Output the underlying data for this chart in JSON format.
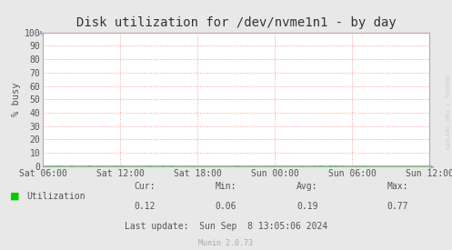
{
  "title": "Disk utilization for /dev/nvme1n1 - by day",
  "ylabel": "% busy",
  "background_color": "#e8e8e8",
  "plot_bg_color": "#ffffff",
  "grid_color": "#ff9999",
  "border_color": "#aaaaaa",
  "line_color": "#00cc00",
  "fill_color": "#00cc00",
  "ylim": [
    0,
    100
  ],
  "yticks": [
    0,
    10,
    20,
    30,
    40,
    50,
    60,
    70,
    80,
    90,
    100
  ],
  "x_labels": [
    "Sat 06:00",
    "Sat 12:00",
    "Sat 18:00",
    "Sun 00:00",
    "Sun 06:00",
    "Sun 12:00"
  ],
  "cur_val": "0.12",
  "min_val": "0.06",
  "avg_val": "0.19",
  "max_val": "0.77",
  "last_update": "Last update:  Sun Sep  8 13:05:06 2024",
  "munin_version": "Munin 2.0.73",
  "legend_label": "Utilization",
  "watermark": "RRDTOOL / TOBI OETIKER",
  "title_fontsize": 10,
  "axis_fontsize": 7,
  "small_fontsize": 6,
  "label_fontsize": 7.5,
  "arrow_color": "#9999cc"
}
